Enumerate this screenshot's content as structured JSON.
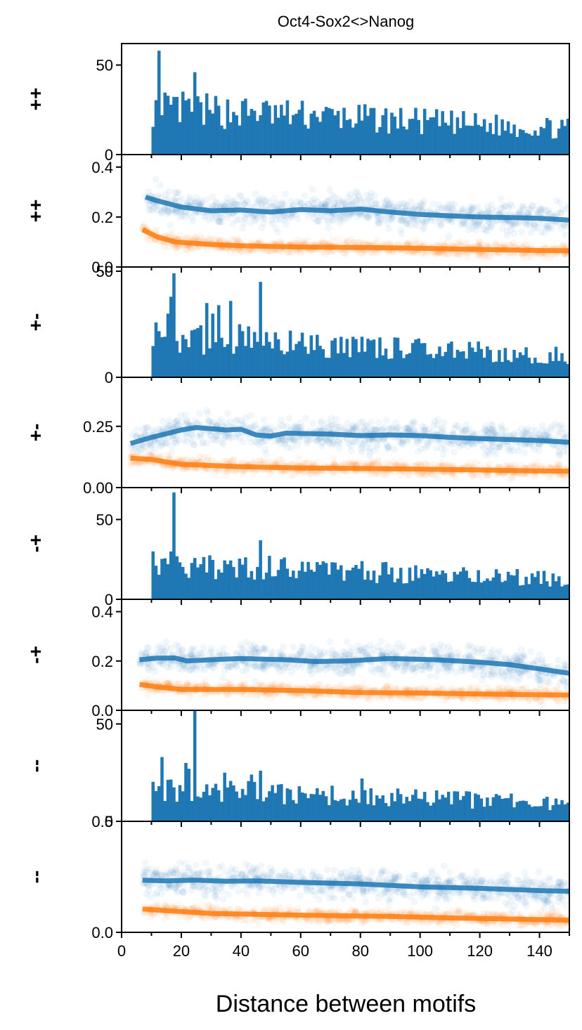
{
  "chart_data": {
    "type": "bar",
    "title": "Oct4-Sox2<>Nanog",
    "xlabel": "Distance between motifs",
    "xlim": [
      0,
      150
    ],
    "xticks": [
      0,
      20,
      40,
      60,
      80,
      100,
      120,
      140
    ],
    "colors": {
      "blue": "#1f77b4",
      "orange": "#ff7f0e"
    },
    "panels": [
      {
        "kind": "histogram",
        "ylabel": "++",
        "ylim": [
          0,
          62
        ],
        "yticks": [
          0,
          50
        ]
      },
      {
        "kind": "scatter",
        "ylabel": "++",
        "ylim": [
          0,
          0.45
        ],
        "yticks": [
          0.0,
          0.2,
          0.4
        ],
        "yticklabels": [
          "0.0",
          "0.2",
          "0.4"
        ],
        "trend_blue": [
          [
            8,
            0.28
          ],
          [
            12,
            0.265
          ],
          [
            20,
            0.24
          ],
          [
            30,
            0.225
          ],
          [
            40,
            0.228
          ],
          [
            50,
            0.22
          ],
          [
            60,
            0.23
          ],
          [
            70,
            0.225
          ],
          [
            80,
            0.232
          ],
          [
            90,
            0.22
          ],
          [
            100,
            0.21
          ],
          [
            110,
            0.205
          ],
          [
            120,
            0.2
          ],
          [
            130,
            0.198
          ],
          [
            140,
            0.195
          ],
          [
            150,
            0.188
          ]
        ],
        "trend_orange": [
          [
            7,
            0.15
          ],
          [
            12,
            0.12
          ],
          [
            18,
            0.1
          ],
          [
            30,
            0.09
          ],
          [
            40,
            0.085
          ],
          [
            60,
            0.08
          ],
          [
            80,
            0.078
          ],
          [
            100,
            0.075
          ],
          [
            120,
            0.07
          ],
          [
            140,
            0.066
          ],
          [
            150,
            0.065
          ]
        ]
      },
      {
        "kind": "histogram",
        "ylabel": "+-",
        "ylim": [
          0,
          52
        ],
        "yticks": [
          0,
          50
        ]
      },
      {
        "kind": "scatter",
        "ylabel": "+-",
        "ylim": [
          0,
          0.45
        ],
        "yticks": [
          0.0,
          0.25
        ],
        "yticklabels": [
          "0.00",
          "0.25"
        ],
        "trend_blue": [
          [
            3,
            0.18
          ],
          [
            10,
            0.205
          ],
          [
            20,
            0.235
          ],
          [
            25,
            0.245
          ],
          [
            35,
            0.235
          ],
          [
            40,
            0.238
          ],
          [
            45,
            0.215
          ],
          [
            50,
            0.21
          ],
          [
            55,
            0.222
          ],
          [
            70,
            0.218
          ],
          [
            80,
            0.212
          ],
          [
            90,
            0.215
          ],
          [
            100,
            0.212
          ],
          [
            110,
            0.205
          ],
          [
            120,
            0.2
          ],
          [
            140,
            0.192
          ],
          [
            150,
            0.185
          ]
        ],
        "trend_orange": [
          [
            3,
            0.12
          ],
          [
            10,
            0.115
          ],
          [
            20,
            0.095
          ],
          [
            40,
            0.085
          ],
          [
            60,
            0.08
          ],
          [
            80,
            0.078
          ],
          [
            100,
            0.075
          ],
          [
            120,
            0.072
          ],
          [
            140,
            0.068
          ],
          [
            150,
            0.067
          ]
        ]
      },
      {
        "kind": "histogram",
        "ylabel": "-+",
        "ylim": [
          0,
          70
        ],
        "yticks": [
          0,
          50
        ]
      },
      {
        "kind": "scatter",
        "ylabel": "-+",
        "ylim": [
          0,
          0.45
        ],
        "yticks": [
          0.0,
          0.2,
          0.4
        ],
        "yticklabels": [
          "0.0",
          "0.2",
          "0.4"
        ],
        "trend_blue": [
          [
            6,
            0.205
          ],
          [
            12,
            0.212
          ],
          [
            18,
            0.212
          ],
          [
            22,
            0.2
          ],
          [
            30,
            0.205
          ],
          [
            40,
            0.21
          ],
          [
            55,
            0.205
          ],
          [
            65,
            0.198
          ],
          [
            75,
            0.2
          ],
          [
            90,
            0.21
          ],
          [
            105,
            0.205
          ],
          [
            120,
            0.195
          ],
          [
            130,
            0.185
          ],
          [
            140,
            0.168
          ],
          [
            150,
            0.15
          ]
        ],
        "trend_orange": [
          [
            6,
            0.105
          ],
          [
            12,
            0.095
          ],
          [
            20,
            0.085
          ],
          [
            40,
            0.085
          ],
          [
            60,
            0.08
          ],
          [
            80,
            0.072
          ],
          [
            100,
            0.07
          ],
          [
            120,
            0.066
          ],
          [
            140,
            0.063
          ],
          [
            150,
            0.062
          ]
        ]
      },
      {
        "kind": "histogram",
        "ylabel": "--",
        "ylim": [
          0,
          57
        ],
        "yticks": [
          0,
          50
        ]
      },
      {
        "kind": "scatter",
        "ylabel": "--",
        "ylim": [
          0,
          0.5
        ],
        "yticks": [
          0.0,
          0.5
        ],
        "yticklabels": [
          "0.0",
          "0.5"
        ],
        "trend_blue": [
          [
            7,
            0.235
          ],
          [
            15,
            0.232
          ],
          [
            25,
            0.235
          ],
          [
            35,
            0.23
          ],
          [
            45,
            0.232
          ],
          [
            60,
            0.225
          ],
          [
            80,
            0.218
          ],
          [
            100,
            0.205
          ],
          [
            120,
            0.198
          ],
          [
            140,
            0.188
          ],
          [
            150,
            0.185
          ]
        ],
        "trend_orange": [
          [
            7,
            0.105
          ],
          [
            18,
            0.095
          ],
          [
            30,
            0.085
          ],
          [
            50,
            0.08
          ],
          [
            70,
            0.075
          ],
          [
            90,
            0.072
          ],
          [
            110,
            0.065
          ],
          [
            130,
            0.06
          ],
          [
            150,
            0.055
          ]
        ]
      }
    ]
  }
}
